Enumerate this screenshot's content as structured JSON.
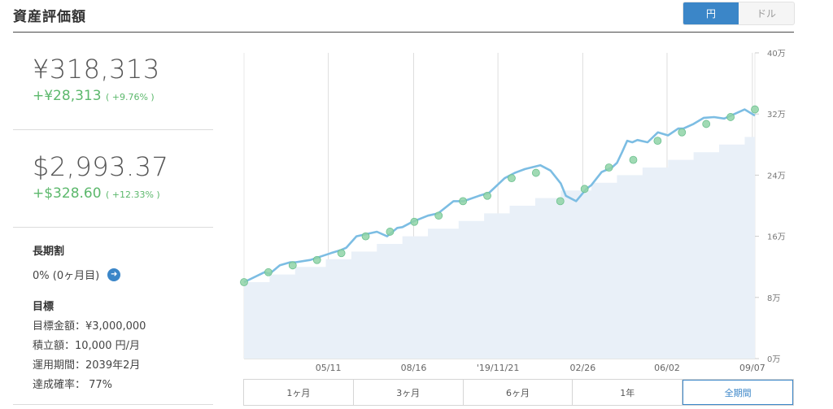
{
  "header": {
    "title": "資産評価額",
    "currency_options": [
      "円",
      "ドル"
    ],
    "active_currency": "円"
  },
  "summary": {
    "jpy_total": "¥318,313",
    "jpy_change": "+¥28,313",
    "jpy_change_pct": "( +9.76% )",
    "usd_total": "$2,993.37",
    "usd_change": "+$328.60",
    "usd_change_pct": "( +12.33% )"
  },
  "long_term": {
    "title": "長期割",
    "value": "0% (0ヶ月目)"
  },
  "goal": {
    "title": "目標",
    "items": [
      "目標金額：¥3,000,000",
      "積立額：10,000 円/月",
      "運用期間：2039年2月",
      "達成確率： 77%"
    ]
  },
  "range_buttons": [
    "1ヶ月",
    "3ヶ月",
    "6ヶ月",
    "1年",
    "全期間"
  ],
  "active_range": "全期間",
  "colors": {
    "accent": "#3b86c8",
    "positive": "#5cb86c",
    "line": "#7cbde3",
    "area": "#e9f0f8",
    "marker": "#8fd3a7"
  },
  "chart_data": {
    "type": "line",
    "x_ticks": [
      "05/11",
      "08/16",
      "'19/11/21",
      "02/26",
      "06/02",
      "09/07"
    ],
    "y_ticks": [
      "0万",
      "8万",
      "16万",
      "24万",
      "32万",
      "40万"
    ],
    "ylim": [
      0,
      40
    ],
    "y_unit": "万円",
    "grid": true,
    "series": [
      {
        "kind": "valuation_line",
        "x": [
          0,
          0.04,
          0.05,
          0.07,
          0.09,
          0.1,
          0.13,
          0.17,
          0.19,
          0.2,
          0.22,
          0.26,
          0.28,
          0.3,
          0.31,
          0.33,
          0.36,
          0.38,
          0.41,
          0.43,
          0.46,
          0.48,
          0.51,
          0.53,
          0.55,
          0.58,
          0.6,
          0.62,
          0.63,
          0.65,
          0.67,
          0.68,
          0.7,
          0.72,
          0.73,
          0.74,
          0.75,
          0.76,
          0.77,
          0.79,
          0.81,
          0.83,
          0.85,
          0.86,
          0.88,
          0.9,
          0.92,
          0.94,
          0.96,
          0.98,
          1.0
        ],
        "y": [
          10.0,
          11.3,
          11.1,
          12.2,
          12.6,
          12.6,
          12.9,
          13.8,
          14.2,
          14.5,
          16.0,
          16.6,
          16.0,
          17.1,
          17.2,
          17.9,
          18.7,
          19.0,
          20.6,
          20.6,
          21.3,
          21.7,
          23.6,
          24.3,
          24.8,
          25.3,
          24.6,
          22.9,
          21.3,
          20.6,
          22.2,
          22.7,
          24.4,
          25.0,
          25.6,
          27.0,
          28.5,
          28.3,
          28.6,
          28.3,
          29.6,
          29.2,
          30.1,
          30.1,
          30.7,
          31.5,
          31.6,
          31.4,
          32.0,
          32.6,
          31.8
        ]
      },
      {
        "kind": "invested_area",
        "x": [
          0,
          0.05,
          0.1,
          0.16,
          0.21,
          0.26,
          0.31,
          0.36,
          0.42,
          0.47,
          0.52,
          0.57,
          0.62,
          0.68,
          0.73,
          0.78,
          0.83,
          0.88,
          0.93,
          0.98,
          1.0
        ],
        "y": [
          10.0,
          11.0,
          12.0,
          13.0,
          14.0,
          15.0,
          16.0,
          17.0,
          18.0,
          19.0,
          20.0,
          21.0,
          22.0,
          23.0,
          24.0,
          25.0,
          26.0,
          27.0,
          28.0,
          29.0,
          29.0
        ]
      }
    ],
    "markers_y": [
      10.0,
      11.3,
      12.2,
      12.9,
      13.8,
      16.0,
      16.6,
      17.9,
      18.7,
      20.6,
      21.3,
      23.6,
      24.3,
      20.6,
      22.2,
      25.0,
      26.0,
      28.5,
      29.6,
      30.7,
      31.6,
      32.6
    ]
  }
}
